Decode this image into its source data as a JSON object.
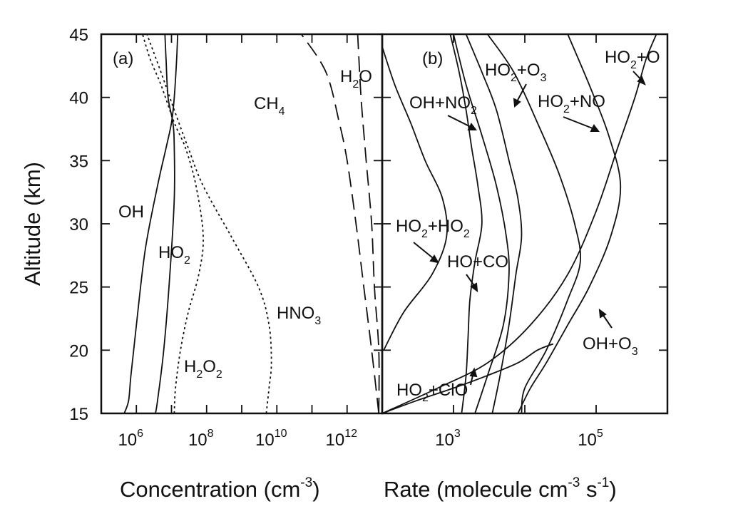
{
  "figure": {
    "ylabel": "Altitude (km)",
    "y_ticks": [
      15,
      20,
      25,
      30,
      35,
      40,
      45
    ]
  },
  "chart_data": [
    {
      "type": "line",
      "panel_label": "(a)",
      "xlabel": {
        "text": "Concentration (cm",
        "sup": "-3",
        "tail": ")"
      },
      "ylabel": "Altitude (km)",
      "x_scale": "log",
      "xlim": [
        100000.0,
        10000000000000.0
      ],
      "ylim": [
        15,
        45
      ],
      "x_ticks": [
        {
          "value": 1000000.0,
          "base": "10",
          "exp": "6"
        },
        {
          "value": 100000000.0,
          "base": "10",
          "exp": "8"
        },
        {
          "value": 10000000000.0,
          "base": "10",
          "exp": "10"
        },
        {
          "value": 1000000000000.0,
          "base": "10",
          "exp": "12"
        }
      ],
      "series": [
        {
          "label": "OH",
          "style": "solid",
          "points": [
            [
              450000.0,
              15
            ],
            [
              600000.0,
              16
            ],
            [
              700000.0,
              18
            ],
            [
              1000000.0,
              22
            ],
            [
              1800000.0,
              28
            ],
            [
              4000000.0,
              33
            ],
            [
              7000000.0,
              36
            ],
            [
              10000000.0,
              38
            ],
            [
              12000000.0,
              40
            ],
            [
              14000000.0,
              43
            ],
            [
              15000000.0,
              45
            ]
          ]
        },
        {
          "label": "HO2",
          "style": "solid",
          "points": [
            [
              3500000.0,
              15
            ],
            [
              4000000.0,
              16
            ],
            [
              6000000.0,
              20
            ],
            [
              9000000.0,
              26
            ],
            [
              12000000.0,
              32
            ],
            [
              12000000.0,
              36
            ],
            [
              11000000.0,
              38
            ],
            [
              8000000.0,
              40
            ],
            [
              7000000.0,
              43
            ],
            [
              6500000.0,
              45
            ]
          ]
        },
        {
          "label": "H2O2",
          "style": "dotted",
          "points": [
            [
              12000000.0,
              15
            ],
            [
              13000000.0,
              17
            ],
            [
              18000000.0,
              20
            ],
            [
              30000000.0,
              23
            ],
            [
              60000000.0,
              26
            ],
            [
              80000000.0,
              29
            ],
            [
              50000000.0,
              33
            ],
            [
              25000000.0,
              36
            ],
            [
              12000000.0,
              38
            ],
            [
              5000000.0,
              41
            ],
            [
              2500000.0,
              43
            ],
            [
              1500000.0,
              45
            ]
          ]
        },
        {
          "label": "HNO3",
          "style": "dotted",
          "points": [
            [
              5000000000.0,
              15
            ],
            [
              6000000000.0,
              17
            ],
            [
              7000000000.0,
              19
            ],
            [
              6000000000.0,
              22
            ],
            [
              3000000000.0,
              25
            ],
            [
              500000000.0,
              29
            ],
            [
              80000000.0,
              33
            ],
            [
              30000000.0,
              36
            ],
            [
              12000000.0,
              39
            ],
            [
              5000000.0,
              42
            ],
            [
              2000000.0,
              45
            ]
          ]
        },
        {
          "label": "CH4",
          "style": "dashed",
          "points": [
            [
              8000000000000.0,
              15
            ],
            [
              5000000000000.0,
              20
            ],
            [
              3000000000000.0,
              25
            ],
            [
              1800000000000.0,
              30
            ],
            [
              1000000000000.0,
              35
            ],
            [
              600000000000.0,
              38
            ],
            [
              250000000000.0,
              42
            ],
            [
              50000000000.0,
              45
            ]
          ]
        },
        {
          "label": "H2O",
          "style": "dashed",
          "points": [
            [
              8000000000000.0,
              15
            ],
            [
              8000000000000.0,
              20
            ],
            [
              6000000000000.0,
              25
            ],
            [
              5000000000000.0,
              30
            ],
            [
              3500000000000.0,
              35
            ],
            [
              2500000000000.0,
              40
            ],
            [
              2000000000000.0,
              45
            ]
          ]
        }
      ],
      "annotations": [
        {
          "base": "OH",
          "sub": "",
          "tail": ""
        },
        {
          "base": "HO",
          "sub": "2",
          "tail": ""
        },
        {
          "base": "H",
          "sub": "2",
          "tail": "O",
          "sub2": "2"
        },
        {
          "base": "HNO",
          "sub": "3",
          "tail": ""
        },
        {
          "base": "CH",
          "sub": "4",
          "tail": ""
        },
        {
          "base": "H",
          "sub": "2",
          "tail": "O"
        }
      ]
    },
    {
      "type": "line",
      "panel_label": "(b)",
      "xlabel": {
        "text": "Rate (molecule cm",
        "sup": "-3",
        "mid": " s",
        "sup2": "-1",
        "tail": ")"
      },
      "x_scale": "log",
      "xlim": [
        100,
        1000000.0
      ],
      "ylim": [
        15,
        45
      ],
      "x_ticks": [
        {
          "value": 1000.0,
          "base": "10",
          "exp": "3"
        },
        {
          "value": 100000.0,
          "base": "10",
          "exp": "5"
        }
      ],
      "series": [
        {
          "label": "HO2+HO2",
          "style": "solid",
          "points": [
            [
              105,
              20
            ],
            [
              200,
              23
            ],
            [
              500,
              26
            ],
            [
              800,
              29
            ],
            [
              700,
              32
            ],
            [
              400,
              35
            ],
            [
              250,
              38
            ],
            [
              150,
              41
            ],
            [
              100,
              44
            ]
          ]
        },
        {
          "label": "HO+CO",
          "style": "solid",
          "points": [
            [
              1300,
              15
            ],
            [
              1500,
              18
            ],
            [
              1600,
              21
            ],
            [
              1700,
              24
            ],
            [
              2000,
              27
            ],
            [
              2500,
              30
            ],
            [
              2200,
              33
            ],
            [
              1800,
              36
            ],
            [
              1500,
              39
            ],
            [
              1200,
              42
            ],
            [
              900,
              45
            ]
          ]
        },
        {
          "label": "OH+NO2",
          "style": "solid",
          "points": [
            [
              2000,
              15
            ],
            [
              3000,
              18
            ],
            [
              5000,
              22
            ],
            [
              6000,
              26
            ],
            [
              5500,
              29
            ],
            [
              4000,
              33
            ],
            [
              2500,
              37
            ],
            [
              1500,
              41
            ],
            [
              1000,
              45
            ]
          ]
        },
        {
          "label": "HO2+O3",
          "style": "solid",
          "points": [
            [
              3500,
              15
            ],
            [
              4500,
              18
            ],
            [
              6000,
              22
            ],
            [
              7500,
              26
            ],
            [
              9000,
              29
            ],
            [
              8000,
              32
            ],
            [
              6000,
              35
            ],
            [
              4000,
              39
            ],
            [
              2500,
              42
            ],
            [
              1500,
              45
            ]
          ]
        },
        {
          "label": "HO2+NO",
          "style": "solid",
          "points": [
            [
              9000,
              15
            ],
            [
              10000,
              17
            ],
            [
              20000,
              20
            ],
            [
              40000,
              24
            ],
            [
              60000,
              27
            ],
            [
              50000,
              30
            ],
            [
              30000,
              34
            ],
            [
              15000,
              38
            ],
            [
              7000,
              42
            ],
            [
              3000,
              45
            ]
          ]
        },
        {
          "label": "HO2+ClO",
          "style": "solid",
          "points": [
            [
              100,
              15
            ],
            [
              300,
              16
            ],
            [
              1000,
              17
            ],
            [
              3000,
              18
            ],
            [
              8000,
              19
            ],
            [
              15000,
              20
            ],
            [
              25000,
              20.5
            ]
          ]
        },
        {
          "label": "HO2+O",
          "style": "solid",
          "points": [
            [
              100,
              15
            ],
            [
              600,
              17
            ],
            [
              3000,
              19
            ],
            [
              12000,
              22
            ],
            [
              40000,
              26
            ],
            [
              100000,
              31
            ],
            [
              200000,
              36
            ],
            [
              350000,
              40
            ],
            [
              500000,
              43
            ],
            [
              700000,
              45
            ]
          ]
        },
        {
          "label": "OH+O3",
          "style": "solid",
          "points": [
            [
              8000,
              15
            ],
            [
              12000,
              17
            ],
            [
              20000,
              19
            ],
            [
              40000,
              22
            ],
            [
              80000,
              25
            ],
            [
              160000,
              29
            ],
            [
              220000,
              33
            ],
            [
              150000,
              37
            ],
            [
              80000,
              41
            ],
            [
              40000,
              45
            ]
          ]
        }
      ],
      "annotations": [
        {
          "base": "HO",
          "sub": "2",
          "tail": "+O"
        },
        {
          "base": "HO",
          "sub": "2",
          "tail": "+O",
          "sub2": "3"
        },
        {
          "base": "OH+NO",
          "sub": "2",
          "tail": ""
        },
        {
          "base": "HO",
          "sub": "2",
          "tail": "+NO"
        },
        {
          "base": "HO",
          "sub": "2",
          "tail": "+HO",
          "sub2": "2"
        },
        {
          "base": "HO+CO",
          "sub": "",
          "tail": ""
        },
        {
          "base": "OH+O",
          "sub": "3",
          "tail": ""
        },
        {
          "base": "HO",
          "sub": "2",
          "tail": "+ClO"
        }
      ]
    }
  ]
}
